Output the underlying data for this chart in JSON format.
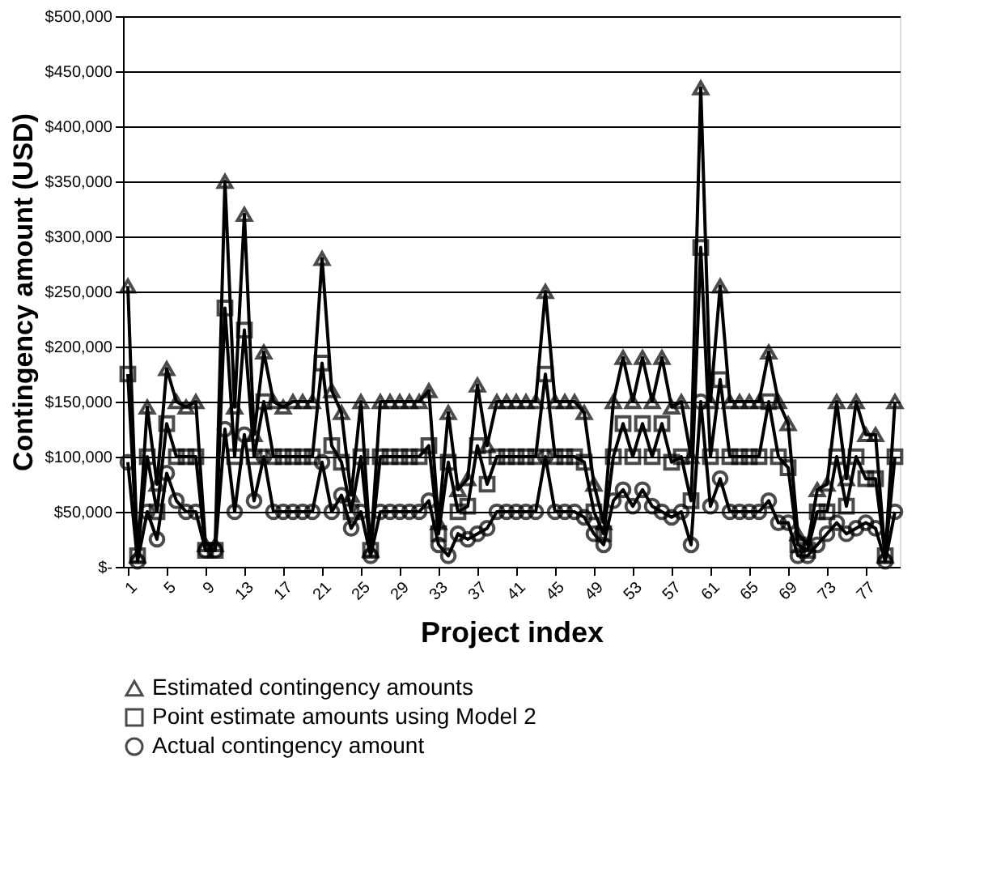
{
  "chart_data": {
    "type": "line",
    "xlabel": "Project index",
    "ylabel": "Contingency amount (USD)",
    "x": [
      1,
      2,
      3,
      4,
      5,
      6,
      7,
      8,
      9,
      10,
      11,
      12,
      13,
      14,
      15,
      16,
      17,
      18,
      19,
      20,
      21,
      22,
      23,
      24,
      25,
      26,
      27,
      28,
      29,
      30,
      31,
      32,
      33,
      34,
      35,
      36,
      37,
      38,
      39,
      40,
      41,
      42,
      43,
      44,
      45,
      46,
      47,
      48,
      49,
      50,
      51,
      52,
      53,
      54,
      55,
      56,
      57,
      58,
      59,
      60,
      61,
      62,
      63,
      64,
      65,
      66,
      67,
      68,
      69,
      70,
      71,
      72,
      73,
      74,
      75,
      76,
      77,
      78,
      79,
      80
    ],
    "xlim": [
      0.5,
      80.5
    ],
    "xticks": [
      1,
      5,
      9,
      13,
      17,
      21,
      25,
      29,
      33,
      37,
      41,
      45,
      49,
      53,
      57,
      61,
      65,
      69,
      73,
      77
    ],
    "ylim": [
      0,
      500000
    ],
    "yticks": [
      {
        "value": 0,
        "label": "$-"
      },
      {
        "value": 50000,
        "label": "$50,000"
      },
      {
        "value": 100000,
        "label": "$100,000"
      },
      {
        "value": 150000,
        "label": "$150,000"
      },
      {
        "value": 200000,
        "label": "$200,000"
      },
      {
        "value": 250000,
        "label": "$250,000"
      },
      {
        "value": 300000,
        "label": "$300,000"
      },
      {
        "value": 350000,
        "label": "$350,000"
      },
      {
        "value": 400000,
        "label": "$400,000"
      },
      {
        "value": 450000,
        "label": "$450,000"
      },
      {
        "value": 500000,
        "label": "$500,000"
      }
    ],
    "grid": "y",
    "legend": "bottom",
    "series": [
      {
        "name": "Estimated contingency amounts",
        "color": "#000000",
        "marker": "triangle",
        "values": [
          255000,
          10000,
          145000,
          75000,
          180000,
          150000,
          145000,
          150000,
          20000,
          20000,
          350000,
          145000,
          320000,
          120000,
          195000,
          150000,
          145000,
          150000,
          150000,
          150000,
          280000,
          160000,
          140000,
          65000,
          150000,
          15000,
          150000,
          150000,
          150000,
          150000,
          150000,
          160000,
          40000,
          140000,
          70000,
          80000,
          165000,
          110000,
          150000,
          150000,
          150000,
          150000,
          150000,
          250000,
          150000,
          150000,
          150000,
          140000,
          75000,
          40000,
          150000,
          190000,
          150000,
          190000,
          150000,
          190000,
          145000,
          150000,
          100000,
          435000,
          150000,
          255000,
          150000,
          150000,
          150000,
          150000,
          195000,
          150000,
          130000,
          30000,
          20000,
          70000,
          75000,
          150000,
          80000,
          150000,
          120000,
          120000,
          10000,
          150000
        ]
      },
      {
        "name": "Point estimate amounts using Model 2",
        "color": "#000000",
        "marker": "square",
        "values": [
          175000,
          10000,
          100000,
          50000,
          130000,
          100000,
          100000,
          100000,
          15000,
          15000,
          235000,
          100000,
          215000,
          100000,
          150000,
          100000,
          100000,
          100000,
          100000,
          100000,
          185000,
          110000,
          95000,
          50000,
          100000,
          15000,
          100000,
          100000,
          100000,
          100000,
          100000,
          110000,
          30000,
          95000,
          50000,
          55000,
          110000,
          75000,
          100000,
          100000,
          100000,
          100000,
          100000,
          175000,
          100000,
          100000,
          100000,
          95000,
          50000,
          30000,
          100000,
          130000,
          100000,
          130000,
          100000,
          130000,
          95000,
          100000,
          60000,
          290000,
          100000,
          170000,
          100000,
          100000,
          100000,
          100000,
          150000,
          100000,
          90000,
          20000,
          15000,
          50000,
          50000,
          100000,
          55000,
          100000,
          80000,
          80000,
          10000,
          100000
        ]
      },
      {
        "name": "Actual contingency amount",
        "color": "#000000",
        "marker": "circle",
        "values": [
          95000,
          5000,
          50000,
          25000,
          85000,
          60000,
          50000,
          50000,
          15000,
          15000,
          125000,
          50000,
          120000,
          60000,
          100000,
          50000,
          50000,
          50000,
          50000,
          50000,
          95000,
          50000,
          65000,
          35000,
          50000,
          10000,
          50000,
          50000,
          50000,
          50000,
          50000,
          60000,
          20000,
          10000,
          30000,
          25000,
          30000,
          35000,
          50000,
          50000,
          50000,
          50000,
          50000,
          100000,
          50000,
          50000,
          50000,
          45000,
          30000,
          20000,
          60000,
          70000,
          55000,
          70000,
          55000,
          50000,
          45000,
          50000,
          20000,
          150000,
          55000,
          80000,
          50000,
          50000,
          50000,
          50000,
          60000,
          40000,
          40000,
          10000,
          10000,
          20000,
          30000,
          40000,
          30000,
          35000,
          40000,
          35000,
          5000,
          50000
        ]
      }
    ]
  }
}
